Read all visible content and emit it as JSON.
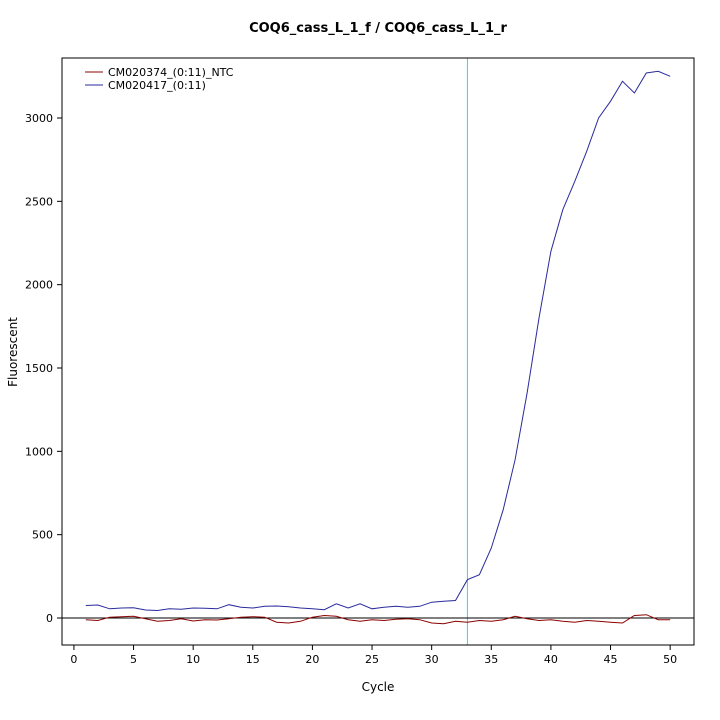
{
  "chart_data": {
    "type": "line",
    "title": "COQ6_cass_L_1_f / COQ6_cass_L_1_r",
    "xlabel": "Cycle",
    "ylabel": "Fluorescent",
    "x_ticks": [
      0,
      5,
      10,
      15,
      20,
      25,
      30,
      35,
      40,
      45,
      50
    ],
    "y_ticks": [
      0,
      500,
      1000,
      1500,
      2000,
      2500,
      3000
    ],
    "xlim": [
      -1,
      52
    ],
    "ylim": [
      -162,
      3360
    ],
    "grid": false,
    "legend_position": "top-left",
    "threshold_line_x": 33,
    "threshold_color": "#00EEEE",
    "zero_line_y": 0,
    "zero_line_color": "#000000",
    "x": [
      1,
      2,
      3,
      4,
      5,
      6,
      7,
      8,
      9,
      10,
      11,
      12,
      13,
      14,
      15,
      16,
      17,
      18,
      19,
      20,
      21,
      22,
      23,
      24,
      25,
      26,
      27,
      28,
      29,
      30,
      31,
      32,
      33,
      34,
      35,
      36,
      37,
      38,
      39,
      40,
      41,
      42,
      43,
      44,
      45,
      46,
      47,
      48,
      49,
      50
    ],
    "series": [
      {
        "name": "CM020374_(0:11)_NTC",
        "color": "#8B0000",
        "values": [
          -10,
          -15,
          5,
          8,
          10,
          -5,
          -20,
          -15,
          -5,
          -18,
          -10,
          -12,
          -5,
          5,
          8,
          5,
          -25,
          -30,
          -20,
          5,
          15,
          10,
          -10,
          -20,
          -10,
          -15,
          -8,
          -5,
          -10,
          -30,
          -35,
          -20,
          -25,
          -15,
          -20,
          -10,
          10,
          -5,
          -15,
          -10,
          -20,
          -25,
          -15,
          -20,
          -25,
          -30,
          15,
          20,
          -10,
          -10
        ]
      },
      {
        "name": "CM020417_(0:11)",
        "color": "#2A2A9C",
        "values": [
          75,
          78,
          55,
          60,
          62,
          48,
          45,
          55,
          52,
          60,
          58,
          55,
          80,
          65,
          60,
          70,
          72,
          68,
          60,
          55,
          50,
          85,
          60,
          85,
          55,
          65,
          70,
          65,
          70,
          95,
          100,
          105,
          230,
          260,
          420,
          650,
          950,
          1350,
          1800,
          2200,
          2450,
          2620,
          2800,
          3000,
          3100,
          3220,
          3150,
          3270,
          3280,
          3250
        ]
      }
    ]
  }
}
